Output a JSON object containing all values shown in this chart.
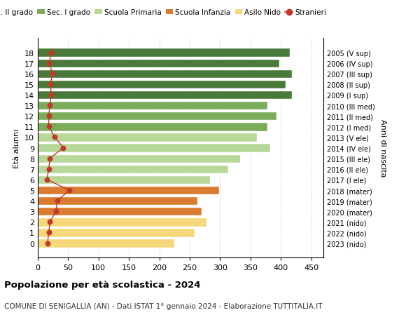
{
  "ages": [
    18,
    17,
    16,
    15,
    14,
    13,
    12,
    11,
    10,
    9,
    8,
    7,
    6,
    5,
    4,
    3,
    2,
    1,
    0
  ],
  "right_labels": [
    "2005 (V sup)",
    "2006 (IV sup)",
    "2007 (III sup)",
    "2008 (II sup)",
    "2009 (I sup)",
    "2010 (III med)",
    "2011 (II med)",
    "2012 (I med)",
    "2013 (V ele)",
    "2014 (IV ele)",
    "2015 (III ele)",
    "2016 (II ele)",
    "2017 (I ele)",
    "2018 (mater)",
    "2019 (mater)",
    "2020 (mater)",
    "2021 (nido)",
    "2022 (nido)",
    "2023 (nido)"
  ],
  "bar_values": [
    415,
    398,
    418,
    408,
    418,
    378,
    393,
    378,
    360,
    382,
    333,
    313,
    283,
    298,
    263,
    270,
    278,
    258,
    225
  ],
  "bar_colors": [
    "#4a7a3a",
    "#4a7a3a",
    "#4a7a3a",
    "#4a7a3a",
    "#4a7a3a",
    "#7aac5a",
    "#7aac5a",
    "#7aac5a",
    "#b8d89a",
    "#b8d89a",
    "#b8d89a",
    "#b8d89a",
    "#b8d89a",
    "#d97c30",
    "#d97c30",
    "#d97c30",
    "#f5d87a",
    "#f5d87a",
    "#f5d87a"
  ],
  "stranieri_values": [
    22,
    19,
    24,
    21,
    22,
    20,
    18,
    18,
    28,
    42,
    20,
    18,
    15,
    52,
    32,
    30,
    20,
    18,
    16
  ],
  "stranieri_color": "#c0392b",
  "xlim": [
    0,
    470
  ],
  "xticks": [
    0,
    50,
    100,
    150,
    200,
    250,
    300,
    350,
    400,
    450
  ],
  "ylabel": "Età alunni",
  "right_axis_label": "Anni di nascita",
  "title_bold": "Popolazione per età scolastica - 2024",
  "subtitle": "COMUNE DI SENIGALLIA (AN) - Dati ISTAT 1° gennaio 2024 - Elaborazione TUTTITALIA.IT",
  "legend_items": [
    {
      "label": "Sec. II grado",
      "color": "#4a7a3a"
    },
    {
      "label": "Sec. I grado",
      "color": "#7aac5a"
    },
    {
      "label": "Scuola Primaria",
      "color": "#b8d89a"
    },
    {
      "label": "Scuola Infanzia",
      "color": "#d97c30"
    },
    {
      "label": "Asilo Nido",
      "color": "#f5d87a"
    },
    {
      "label": "Stranieri",
      "color": "#c0392b"
    }
  ],
  "background_color": "#ffffff",
  "grid_color": "#cccccc"
}
